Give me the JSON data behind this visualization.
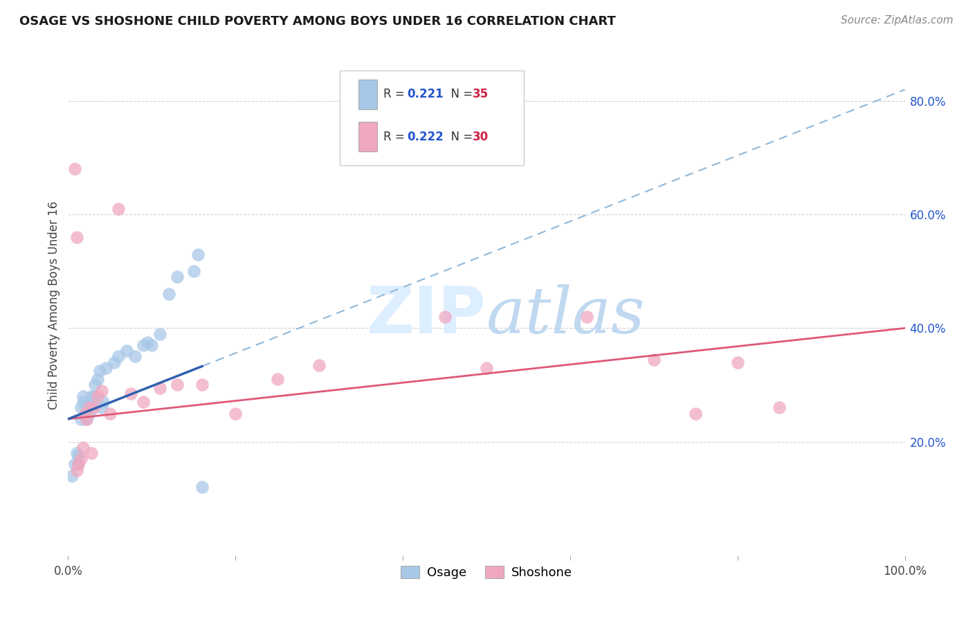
{
  "title": "OSAGE VS SHOSHONE CHILD POVERTY AMONG BOYS UNDER 16 CORRELATION CHART",
  "source": "Source: ZipAtlas.com",
  "ylabel": "Child Poverty Among Boys Under 16",
  "xlim": [
    0,
    1.0
  ],
  "ylim": [
    0,
    0.88
  ],
  "ytick_positions": [
    0.2,
    0.4,
    0.6,
    0.8
  ],
  "ytick_labels": [
    "20.0%",
    "40.0%",
    "60.0%",
    "80.0%"
  ],
  "grid_color": "#d0d0d0",
  "background_color": "#ffffff",
  "osage_color": "#a8c8e8",
  "shoshone_color": "#f0a8c0",
  "osage_line_color": "#3060b0",
  "osage_dash_color": "#90b8d8",
  "shoshone_line_color": "#e05878",
  "legend_R_color": "#2255cc",
  "legend_N_color": "#cc2244",
  "watermark_color": "#ddeeff",
  "osage_points_x": [
    0.005,
    0.008,
    0.01,
    0.012,
    0.012,
    0.015,
    0.015,
    0.018,
    0.018,
    0.02,
    0.022,
    0.025,
    0.025,
    0.028,
    0.03,
    0.03,
    0.032,
    0.035,
    0.038,
    0.04,
    0.042,
    0.045,
    0.055,
    0.06,
    0.07,
    0.08,
    0.09,
    0.095,
    0.1,
    0.11,
    0.12,
    0.13,
    0.15,
    0.155,
    0.16
  ],
  "osage_points_y": [
    0.14,
    0.16,
    0.18,
    0.16,
    0.175,
    0.24,
    0.26,
    0.27,
    0.28,
    0.25,
    0.24,
    0.25,
    0.265,
    0.28,
    0.26,
    0.28,
    0.3,
    0.31,
    0.325,
    0.26,
    0.27,
    0.33,
    0.34,
    0.35,
    0.36,
    0.35,
    0.37,
    0.375,
    0.37,
    0.39,
    0.46,
    0.49,
    0.5,
    0.53,
    0.12
  ],
  "shoshone_points_x": [
    0.008,
    0.01,
    0.012,
    0.015,
    0.018,
    0.02,
    0.022,
    0.025,
    0.028,
    0.03,
    0.035,
    0.04,
    0.05,
    0.06,
    0.075,
    0.09,
    0.11,
    0.13,
    0.16,
    0.2,
    0.25,
    0.3,
    0.45,
    0.5,
    0.62,
    0.7,
    0.75,
    0.8,
    0.85,
    0.01
  ],
  "shoshone_points_y": [
    0.68,
    0.15,
    0.16,
    0.17,
    0.19,
    0.25,
    0.24,
    0.26,
    0.18,
    0.26,
    0.28,
    0.29,
    0.25,
    0.61,
    0.285,
    0.27,
    0.295,
    0.3,
    0.3,
    0.25,
    0.31,
    0.335,
    0.42,
    0.33,
    0.42,
    0.345,
    0.25,
    0.34,
    0.26,
    0.56
  ],
  "osage_trend_x0": 0.0,
  "osage_trend_y0": 0.24,
  "osage_trend_x1": 1.0,
  "osage_trend_y1": 0.82,
  "shoshone_trend_x0": 0.0,
  "shoshone_trend_y0": 0.24,
  "shoshone_trend_x1": 1.0,
  "shoshone_trend_y1": 0.4
}
